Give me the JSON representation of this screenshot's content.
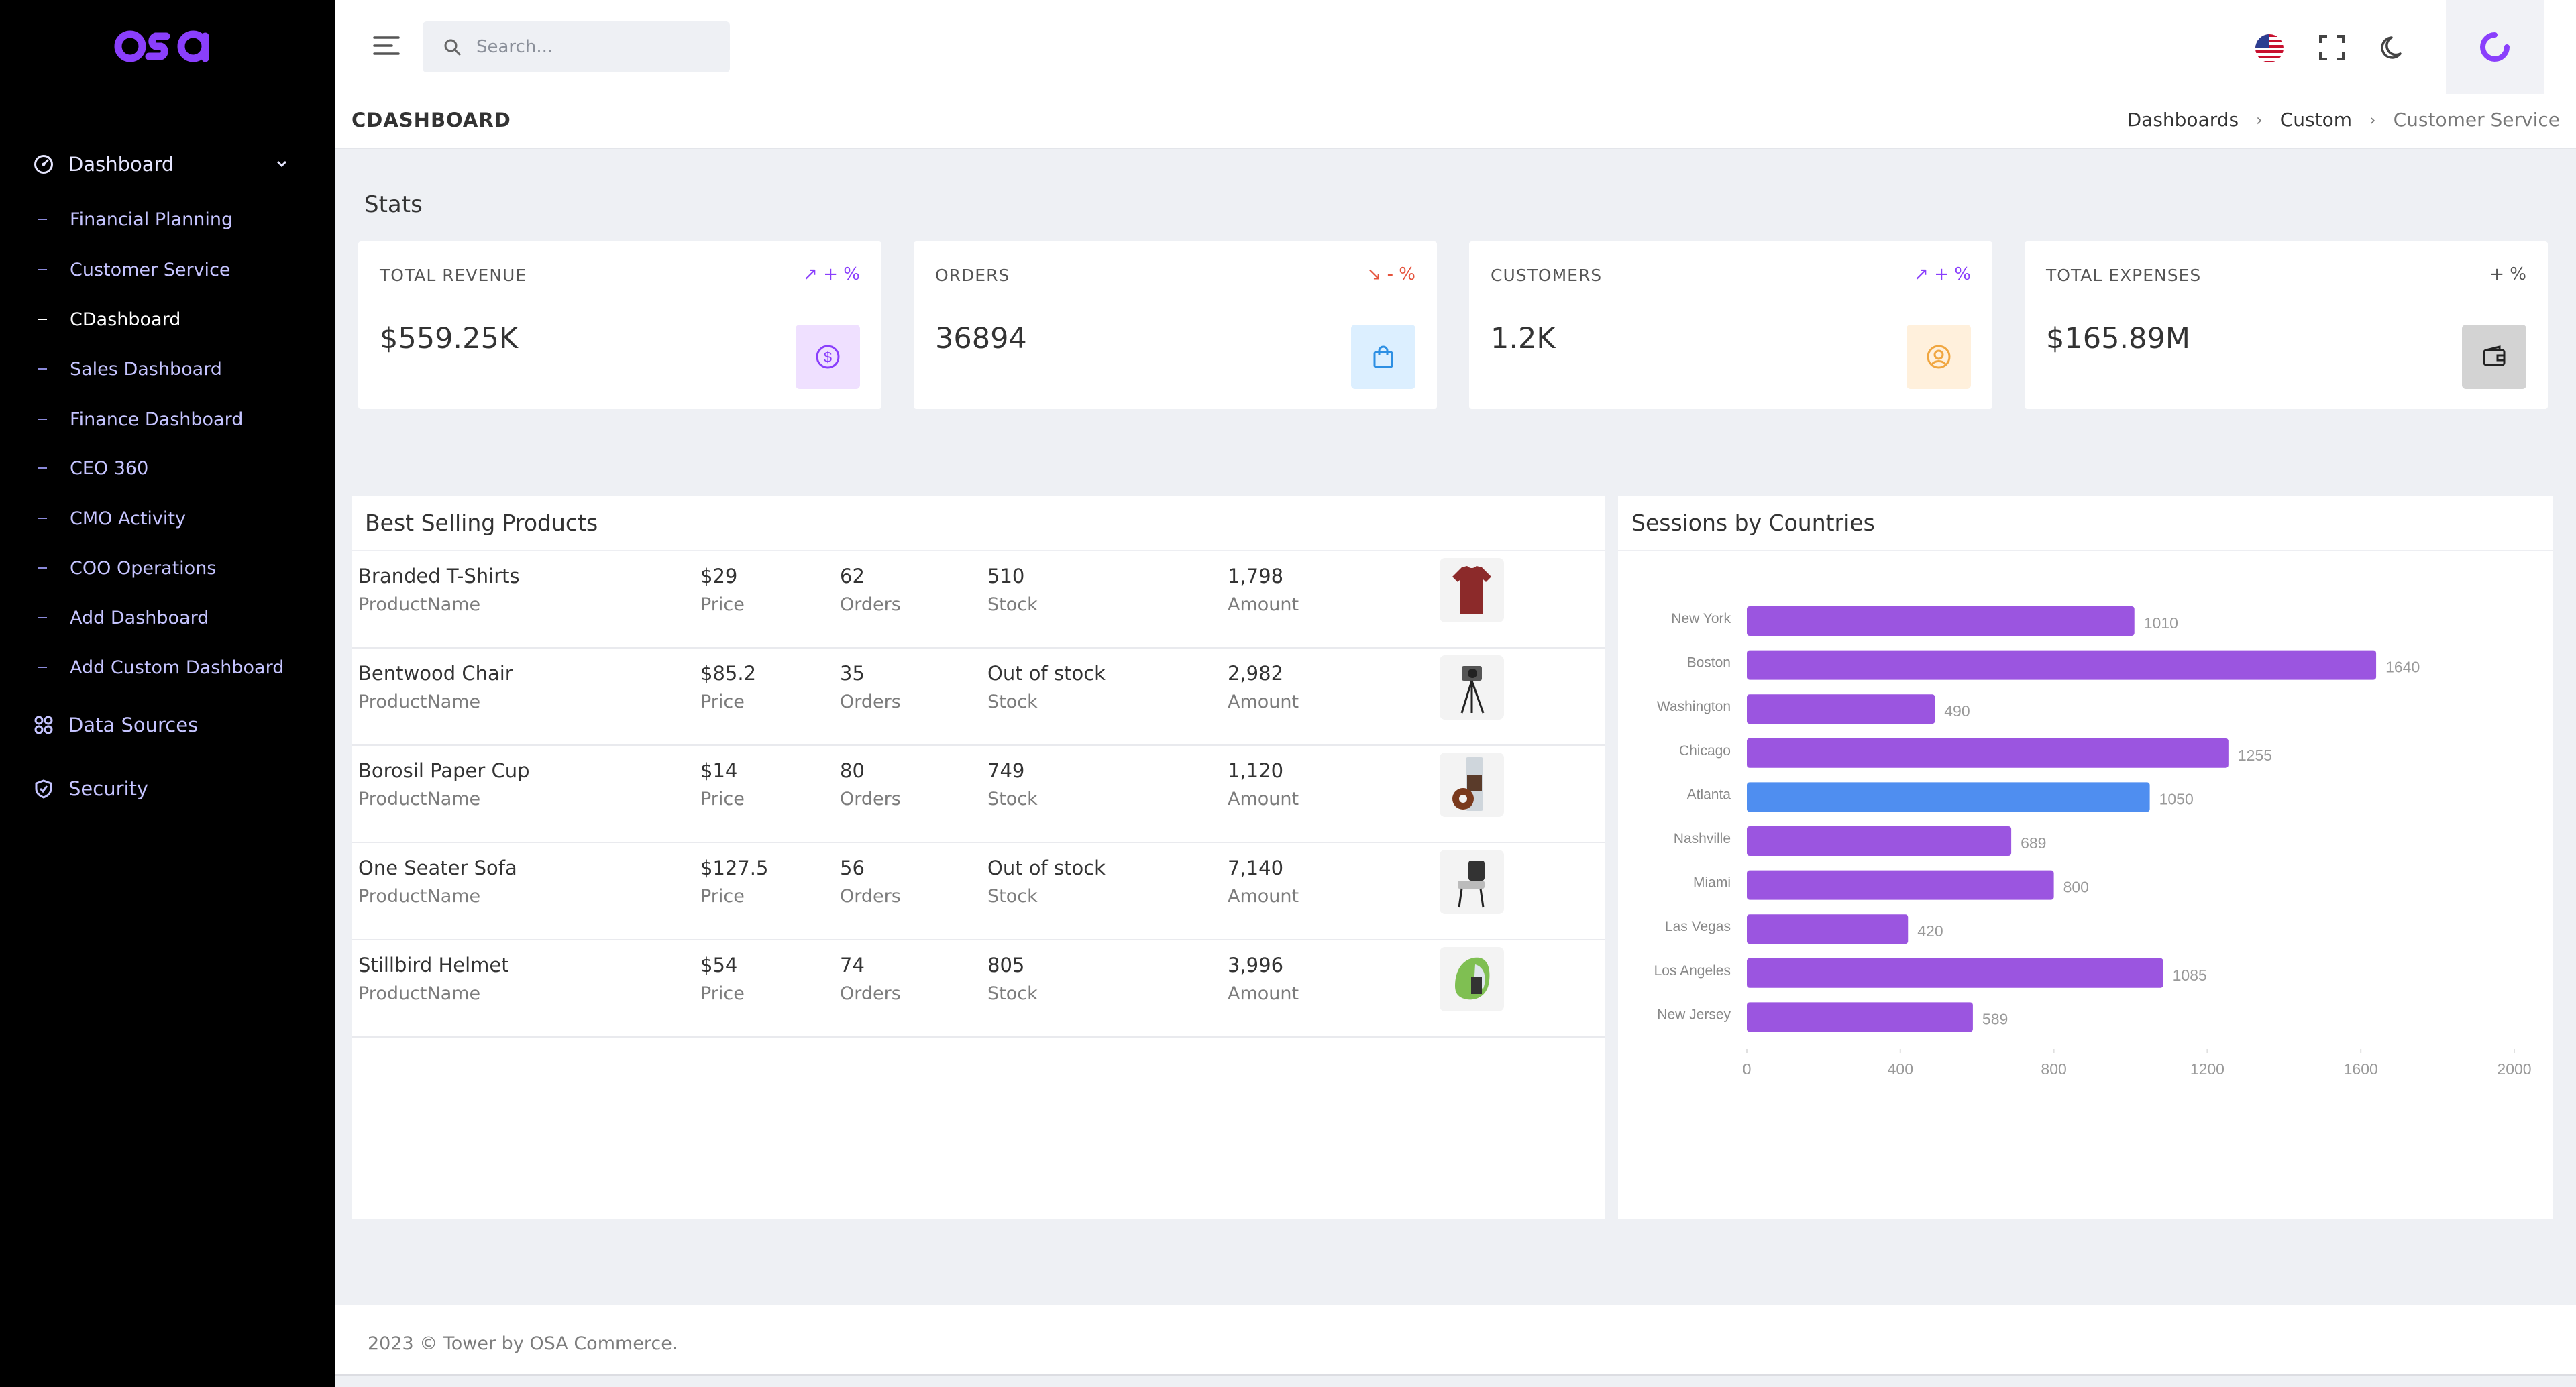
{
  "brand": {
    "logo_text": "osa",
    "accent": "#8a3ffc"
  },
  "sidebar": {
    "parent_items": [
      {
        "label": "Dashboard",
        "icon": "gauge-icon",
        "expanded": true
      },
      {
        "label": "Data Sources",
        "icon": "grid-icon"
      },
      {
        "label": "Security",
        "icon": "shield-icon"
      }
    ],
    "children": [
      {
        "label": "Financial Planning"
      },
      {
        "label": "Customer Service"
      },
      {
        "label": "CDashboard",
        "active": true
      },
      {
        "label": "Sales Dashboard"
      },
      {
        "label": "Finance Dashboard"
      },
      {
        "label": "CEO 360"
      },
      {
        "label": "CMO Activity"
      },
      {
        "label": "COO Operations"
      },
      {
        "label": "Add Dashboard"
      },
      {
        "label": "Add Custom Dashboard"
      }
    ]
  },
  "topbar": {
    "search_placeholder": "Search...",
    "icons": [
      "menu-icon",
      "search-icon",
      "us-flag-icon",
      "fullscreen-icon",
      "moon-icon",
      "profile-logo-icon"
    ]
  },
  "page": {
    "title": "CDASHBOARD",
    "breadcrumb": [
      "Dashboards",
      "Custom",
      "Customer Service"
    ]
  },
  "stats": {
    "title": "Stats",
    "cards": [
      {
        "label": "TOTAL REVENUE",
        "trend": "+ %",
        "trend_dir": "up",
        "value": "$559.25K",
        "icon": "dollar-icon",
        "icon_bg": "#efe0ff",
        "icon_color": "#8a3ffc"
      },
      {
        "label": "ORDERS",
        "trend": "- %",
        "trend_dir": "down",
        "value": "36894",
        "icon": "shopping-bag-icon",
        "icon_bg": "#dcefff",
        "icon_color": "#2d8fe3"
      },
      {
        "label": "CUSTOMERS",
        "trend": "+ %",
        "trend_dir": "up",
        "value": "1.2K",
        "icon": "user-circle-icon",
        "icon_bg": "#fff0dc",
        "icon_color": "#f0a640"
      },
      {
        "label": "TOTAL EXPENSES",
        "trend": "+ %",
        "trend_dir": "none",
        "value": "$165.89M",
        "icon": "wallet-icon",
        "icon_bg": "#d3d3d3",
        "icon_color": "#333333"
      }
    ]
  },
  "products": {
    "title": "Best Selling Products",
    "labels": {
      "name": "ProductName",
      "price": "Price",
      "orders": "Orders",
      "stock": "Stock",
      "amount": "Amount"
    },
    "rows": [
      {
        "name": "Branded T-Shirts",
        "price": "$29",
        "orders": "62",
        "stock": "510",
        "amount": "1,798",
        "image": "tshirt-image"
      },
      {
        "name": "Bentwood Chair",
        "price": "$85.2",
        "orders": "35",
        "stock": "Out of stock",
        "amount": "2,982",
        "image": "camera-tripod-image"
      },
      {
        "name": "Borosil Paper Cup",
        "price": "$14",
        "orders": "80",
        "stock": "749",
        "amount": "1,120",
        "image": "cup-image"
      },
      {
        "name": "One Seater Sofa",
        "price": "$127.5",
        "orders": "56",
        "stock": "Out of stock",
        "amount": "7,140",
        "image": "chair-image"
      },
      {
        "name": "Stillbird Helmet",
        "price": "$54",
        "orders": "74",
        "stock": "805",
        "amount": "3,996",
        "image": "helmet-image"
      }
    ]
  },
  "sessions": {
    "title": "Sessions by Countries"
  },
  "chart_data": {
    "type": "bar",
    "orientation": "horizontal",
    "categories": [
      "New York",
      "Boston",
      "Washington",
      "Chicago",
      "Atlanta",
      "Nashville",
      "Miami",
      "Las Vegas",
      "Los Angeles",
      "New Jersey"
    ],
    "values": [
      1010,
      1640,
      490,
      1255,
      1050,
      689,
      800,
      420,
      1085,
      589
    ],
    "colors": [
      "#9b55e0",
      "#9b55e0",
      "#9b55e0",
      "#9b55e0",
      "#4f8ef0",
      "#9b55e0",
      "#9b55e0",
      "#9b55e0",
      "#9b55e0",
      "#9b55e0"
    ],
    "xlim": [
      0,
      2000
    ],
    "xticks": [
      0,
      400,
      800,
      1200,
      1600,
      2000
    ],
    "data_labels": true,
    "grid": false
  },
  "footer": {
    "text": "2023 © Tower by OSA Commerce."
  }
}
